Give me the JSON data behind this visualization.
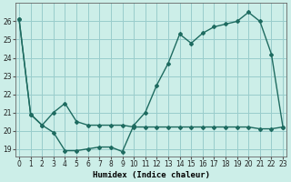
{
  "xlabel": "Humidex (Indice chaleur)",
  "bg_color": "#cceee8",
  "line_color": "#1e6b60",
  "grid_color": "#99cccc",
  "series1_x": [
    0,
    1,
    2,
    3,
    4,
    5,
    6,
    7,
    8,
    9,
    10,
    11,
    12,
    13,
    14,
    15,
    16,
    17,
    18,
    19,
    20,
    21,
    22,
    23
  ],
  "series1_y": [
    26.1,
    20.9,
    20.3,
    21.0,
    21.5,
    20.5,
    20.3,
    20.3,
    20.3,
    20.3,
    20.2,
    20.2,
    20.2,
    20.2,
    20.2,
    20.2,
    20.2,
    20.2,
    20.2,
    20.2,
    20.2,
    20.1,
    20.1,
    20.2
  ],
  "series2_x": [
    0,
    1,
    2,
    3,
    4,
    5,
    6,
    7,
    8,
    9,
    10,
    11,
    12,
    13,
    14,
    15,
    16,
    17,
    18,
    19,
    20,
    21,
    22,
    23
  ],
  "series2_y": [
    26.1,
    20.9,
    20.3,
    19.9,
    18.9,
    18.9,
    19.0,
    19.1,
    19.1,
    18.85,
    20.3,
    21.0,
    22.5,
    23.7,
    25.3,
    24.8,
    25.35,
    25.7,
    25.85,
    26.0,
    26.5,
    26.0,
    24.2,
    20.2
  ],
  "xlim": [
    -0.3,
    23.3
  ],
  "ylim": [
    18.6,
    27.0
  ],
  "yticks": [
    19,
    20,
    21,
    22,
    23,
    24,
    25,
    26
  ],
  "xticks": [
    0,
    1,
    2,
    3,
    4,
    5,
    6,
    7,
    8,
    9,
    10,
    11,
    12,
    13,
    14,
    15,
    16,
    17,
    18,
    19,
    20,
    21,
    22,
    23
  ],
  "tick_fontsize": 5.5,
  "xlabel_fontsize": 6.5
}
